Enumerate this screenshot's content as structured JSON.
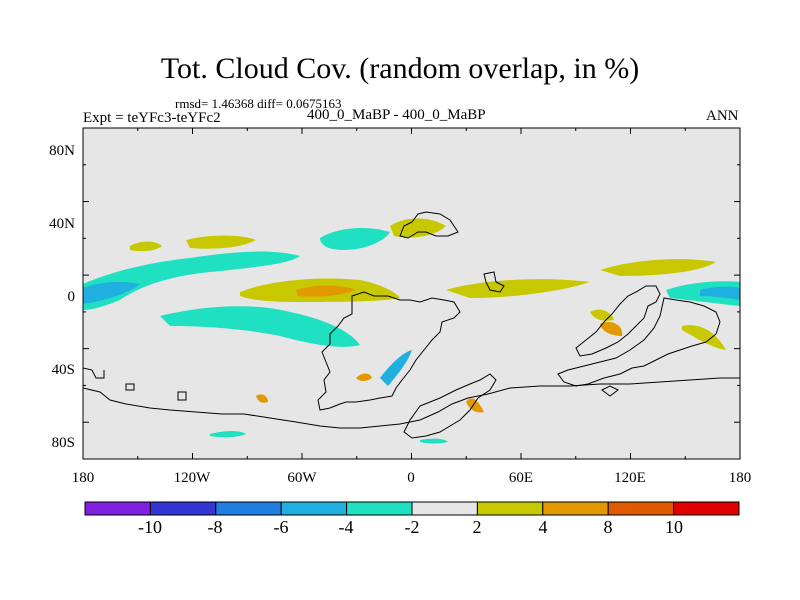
{
  "header": {
    "title": "Tot. Cloud Cov. (random overlap, in %)",
    "stats": "rmsd= 1.46368 diff= 0.0675163",
    "experiment": "Expt = teYFc3-teYFc2",
    "period": "400_0_MaBP - 400_0_MaBP",
    "season": "ANN"
  },
  "map": {
    "projection": "cylindrical equidistant",
    "lon_range": [
      -180,
      180
    ],
    "lat_range": [
      -90,
      90
    ],
    "background_color": "#e6e6e6",
    "coastline_color": "#000000",
    "lon_ticks": [
      "180",
      "120W",
      "60W",
      "0",
      "60E",
      "120E",
      "180"
    ],
    "lat_ticks": [
      "80N",
      "40N",
      "0",
      "40S",
      "80S"
    ]
  },
  "colorbar": {
    "labels": [
      "-10",
      "-8",
      "-6",
      "-4",
      "-2",
      "2",
      "4",
      "8",
      "10"
    ],
    "colors": [
      "#7f1fe0",
      "#3535d6",
      "#1f7fe0",
      "#1fb0e0",
      "#1fe0c0",
      "#e6e6e6",
      "#c8c800",
      "#e09a00",
      "#e05a00",
      "#e00000"
    ]
  },
  "features": [
    {
      "name": "neg-band-pacific-east",
      "level": "-4",
      "color": "#1fe0c0"
    },
    {
      "name": "neg-band-pacific-core",
      "level": "-6",
      "color": "#1fb0e0"
    },
    {
      "name": "pos-band-atlantic",
      "level": "2",
      "color": "#c8c800"
    },
    {
      "name": "pos-core-atlantic",
      "level": "4",
      "color": "#e09a00"
    },
    {
      "name": "pos-band-indian",
      "level": "2",
      "color": "#c8c800"
    },
    {
      "name": "neg-band-west-pacific",
      "level": "-4",
      "color": "#1fe0c0"
    }
  ]
}
